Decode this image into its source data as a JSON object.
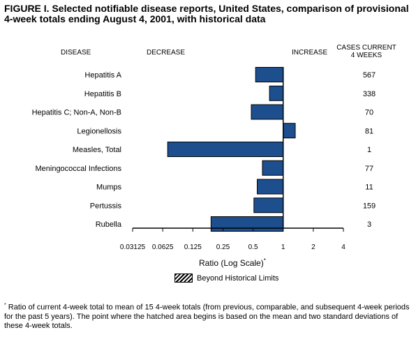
{
  "title": "FIGURE I. Selected notifiable disease reports, United States, comparison of provisional 4-week totals ending August 4, 2001, with historical data",
  "headers": {
    "disease": "DISEASE",
    "decrease": "DECREASE",
    "increase": "INCREASE",
    "cases_line1": "CASES CURRENT",
    "cases_line2": "4 WEEKS"
  },
  "legend": {
    "label": "Beyond Historical Limits"
  },
  "footnote": {
    "marker": "*",
    "text": "Ratio of current 4-week total to mean of 15 4-week totals (from previous, comparable, and subsequent 4-week periods for the past 5 years). The point where the hatched area begins is based on the mean and two standard deviations of these 4-week totals."
  },
  "chart_data": {
    "type": "bar",
    "orientation": "horizontal",
    "xlabel": "Ratio (Log Scale)",
    "xlabel_marker": "*",
    "xscale": "log2",
    "xlim": [
      0.03125,
      4
    ],
    "reference_value": 1,
    "xticks": [
      "0.03125",
      "0.0625",
      "0.125",
      "0.25",
      "0.5",
      "1",
      "2",
      "4"
    ],
    "bar_color": "#1d4f8e",
    "categories": [
      "Hepatitis A",
      "Hepatitis B",
      "Hepatitis C; Non-A, Non-B",
      "Legionellosis",
      "Measles, Total",
      "Meningococcal Infections",
      "Mumps",
      "Pertussis",
      "Rubella"
    ],
    "values": [
      0.53,
      0.73,
      0.48,
      1.32,
      0.07,
      0.62,
      0.55,
      0.51,
      0.19
    ],
    "cases": [
      "567",
      "338",
      "70",
      "81",
      "1",
      "77",
      "11",
      "159",
      "3"
    ]
  }
}
